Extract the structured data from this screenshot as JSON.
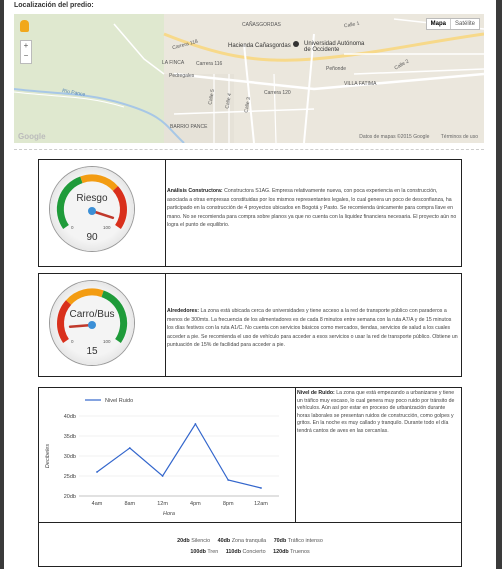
{
  "location": {
    "title": "Localización del predio:"
  },
  "map": {
    "type_buttons": [
      "Mapa",
      "Satélite"
    ],
    "labels": {
      "canasgordas": "CAÑASGORDAS",
      "hacienda": "Hacienda Cañasgordas",
      "universidad": "Universidad Autónoma de Occidente",
      "la_finca": "LA FINCA",
      "villa_fatima": "VILLA FATIMA",
      "barrio_pance": "BARRIO PANCE",
      "rio_pance": "Río Pance",
      "pedregales": "Pedregales",
      "penonde": "Peñonde",
      "carrera_118": "Carrera 118",
      "carrera_116": "Carrera 116",
      "carrera_120": "Carrera 120",
      "calle_5": "Calle 5",
      "calle_4": "Calle 4",
      "calle_3": "Calle 3",
      "calle_2": "Calle 2",
      "calle_1": "Calle 1"
    },
    "google_logo": "Google",
    "footer": {
      "data": "Datos de mapas ©2015 Google",
      "terms": "Términos de uso"
    }
  },
  "construction": {
    "gauge_label": "Riesgo",
    "gauge_value": "90",
    "gauge_min": "0",
    "gauge_max": "100",
    "value": 90,
    "heading": "Análisis Constructora:",
    "text": "Constructora S1AG. Empresa relativamente nueva, con poca experiencia en la construcción, asociada a otras empresas constituidas por los mismos representantes legales, lo cual genera un poco de desconfianza, ha participado en la construcción de 4 proyectos ubicados en Bogotá y Pasto. Se recomienda únicamente para compra llave en mano. No se recomienda para compra sobre planos ya que no cuenta con la liquidez financiera necesaria. El proyecto aún no logra el punto de equilibrio."
  },
  "surroundings": {
    "gauge_label": "Carro/Bus",
    "gauge_value": "15",
    "gauge_min": "0",
    "gauge_max": "100",
    "value": 15,
    "heading": "Alrededores:",
    "text": "La zona está ubicada cerca de universidades y tiene acceso a la red de transporte público con paraderos a menos de 300mts. La frecuencia de los alimentadores es de cada 8 minutos entre semana con la ruta A7/A y de 15 minutos los días festivos con la ruta A1/C. No cuenta con servicios básicos como mercados, tiendas, servicios de salud a los cuales acceder a pie. Se recomienda el uso de vehículo para acceder a esos servicios o usar la red de transporte público. Obtiene un puntuación de 15% de facilidad para acceder a pie."
  },
  "noise": {
    "heading": "Nivel de Ruido:",
    "text": "La zona que está empezando a urbanizarse y tiene un tráfico muy escaso, lo cual genera muy poco ruido por tránsito de vehículos. Aún así por estar en proceso de urbanización durante horas laborales se presentan ruidos de construcción, como golpes y gritos. En la noche es muy callado y tranquilo. Durante todo el día tendrá cantos de aves en las cercanías.",
    "legend_row1": [
      {
        "value": "20db",
        "label": "Silencio"
      },
      {
        "value": "40db",
        "label": "Zona tranquila"
      },
      {
        "value": "70db",
        "label": "Tráfico intenso"
      }
    ],
    "legend_row2": [
      {
        "value": "100db",
        "label": "Tren"
      },
      {
        "value": "110db",
        "label": "Concierto"
      },
      {
        "value": "120db",
        "label": "Truenos"
      }
    ]
  },
  "chart_data": {
    "type": "line",
    "categories": [
      "4am",
      "8am",
      "12m",
      "4pm",
      "8pm",
      "12am"
    ],
    "series": [
      {
        "name": "Nivel Ruido",
        "values": [
          26,
          32,
          25,
          38,
          24,
          22
        ],
        "color": "#3366cc"
      }
    ],
    "xlabel": "Hora",
    "ylabel": "Decibeles",
    "yticks": [
      "20db",
      "25db",
      "30db",
      "35db",
      "40db"
    ],
    "ylim": [
      20,
      40
    ]
  },
  "colors": {
    "gauge_green": "#1f9b3a",
    "gauge_orange": "#f39c12",
    "gauge_red": "#d9301c",
    "needle": "#c0392b",
    "line": "#3366cc"
  }
}
